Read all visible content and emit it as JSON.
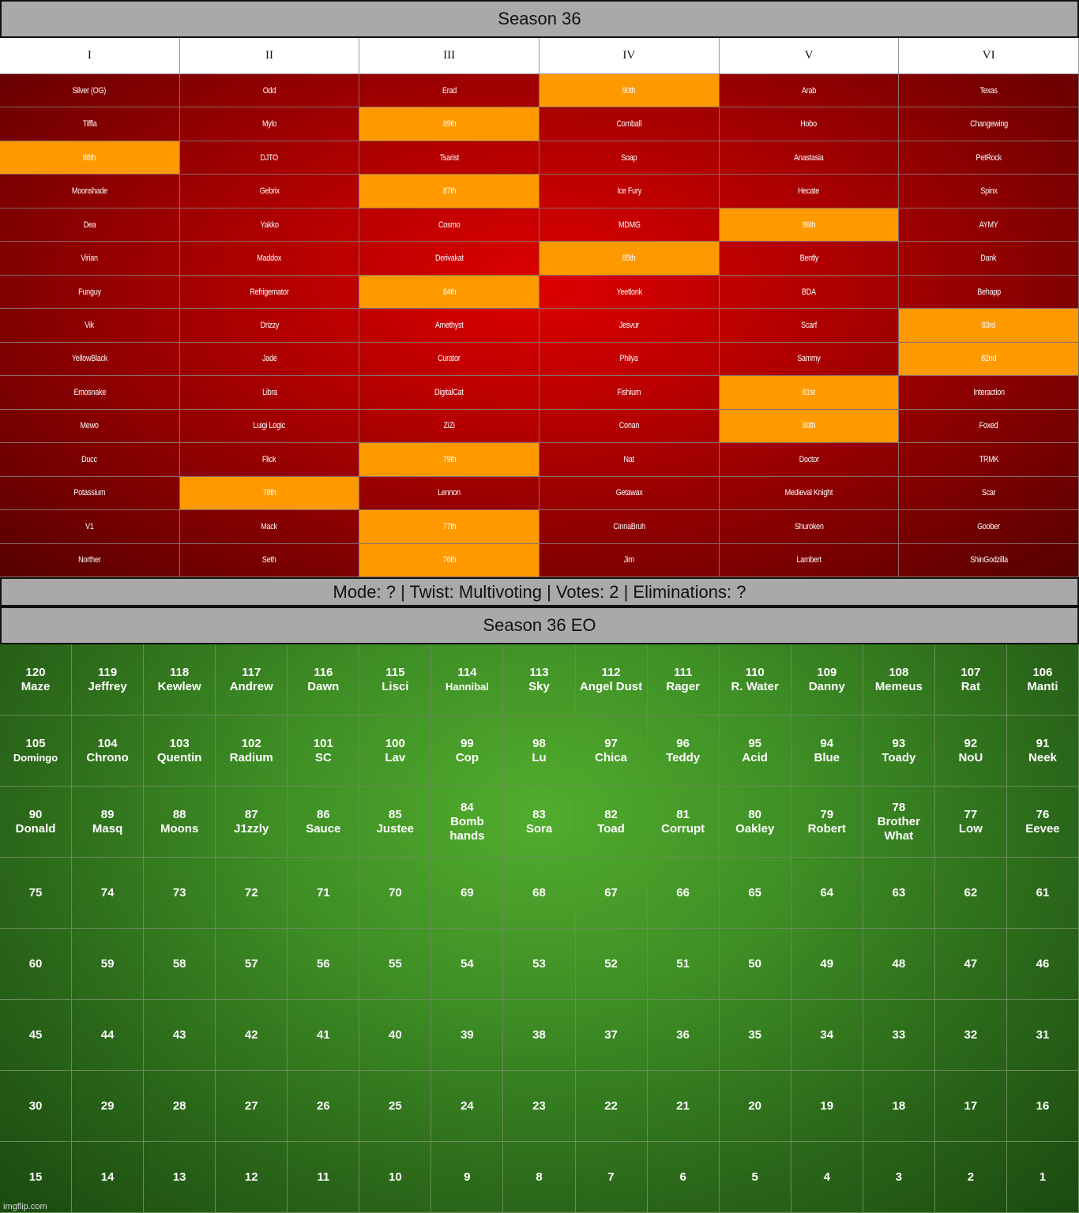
{
  "title": "Season 36",
  "columns": [
    "I",
    "II",
    "III",
    "IV",
    "V",
    "VI"
  ],
  "red_rows": [
    [
      "Silver (OG)",
      "Odd",
      "Erad",
      "90th",
      "Arab",
      "Texas"
    ],
    [
      "Tiffla",
      "Mylo",
      "89th",
      "Cornball",
      "Hobo",
      "Changewing"
    ],
    [
      "88th",
      "DJTO",
      "Tsarist",
      "Soap",
      "Anastasia",
      "PetRock"
    ],
    [
      "Moonshade",
      "Gebrix",
      "87th",
      "Ice Fury",
      "Hecate",
      "Spinx"
    ],
    [
      "Dea",
      "Yakko",
      "Cosmo",
      "MDMG",
      "86th",
      "AYMY"
    ],
    [
      "Virian",
      "Maddox",
      "Derivakat",
      "85th",
      "Bently",
      "Dank"
    ],
    [
      "Funguy",
      "Refrigemator",
      "84th",
      "Yeetlonk",
      "BDA",
      "Behapp"
    ],
    [
      "Vik",
      "Drizzy",
      "Amethyst",
      "Jesvur",
      "Scarf",
      "83rd"
    ],
    [
      "YellowBlack",
      "Jade",
      "Curator",
      "Philya",
      "Sammy",
      "82nd"
    ],
    [
      "Emosnake",
      "Libra",
      "DigitalCat",
      "Fishium",
      "81st",
      "Interaction"
    ],
    [
      "Mewo",
      "Luigi Logic",
      "ZiZi",
      "Conan",
      "80th",
      "Foxed"
    ],
    [
      "Ducc",
      "Flick",
      "79th",
      "Nat",
      "Doctor",
      "TRMK"
    ],
    [
      "Potassium",
      "78th",
      "Lennon",
      "Getawax",
      "Medieval Knight",
      "Scar"
    ],
    [
      "V1",
      "Mack",
      "77th",
      "CinnaBruh",
      "Shuroken",
      "Goober"
    ],
    [
      "Norther",
      "Seth",
      "76th",
      "Jim",
      "Lambert",
      "ShinGodzilla"
    ]
  ],
  "mode_line": "Mode: ? | Twist: Multivoting | Votes: 2 | Eliminations: ?",
  "eo_title": "Season 36 EO",
  "eo_rows": [
    [
      [
        "120",
        "Maze"
      ],
      [
        "119",
        "Jeffrey"
      ],
      [
        "118",
        "Kewlew"
      ],
      [
        "117",
        "Andrew"
      ],
      [
        "116",
        "Dawn"
      ],
      [
        "115",
        "Lisci"
      ],
      [
        "114",
        "Hannibal"
      ],
      [
        "113",
        "Sky"
      ],
      [
        "112",
        "Angel Dust"
      ],
      [
        "111",
        "Rager"
      ],
      [
        "110",
        "R. Water"
      ],
      [
        "109",
        "Danny"
      ],
      [
        "108",
        "Memeus"
      ],
      [
        "107",
        "Rat"
      ],
      [
        "106",
        "Manti"
      ]
    ],
    [
      [
        "105",
        "Domingo"
      ],
      [
        "104",
        "Chrono"
      ],
      [
        "103",
        "Quentin"
      ],
      [
        "102",
        "Radium"
      ],
      [
        "101",
        "SC"
      ],
      [
        "100",
        "Lav"
      ],
      [
        "99",
        "Cop"
      ],
      [
        "98",
        "Lu"
      ],
      [
        "97",
        "Chica"
      ],
      [
        "96",
        "Teddy"
      ],
      [
        "95",
        "Acid"
      ],
      [
        "94",
        "Blue"
      ],
      [
        "93",
        "Toady"
      ],
      [
        "92",
        "NoU"
      ],
      [
        "91",
        "Neek"
      ]
    ],
    [
      [
        "90",
        "Donald"
      ],
      [
        "89",
        "Masq"
      ],
      [
        "88",
        "Moons"
      ],
      [
        "87",
        "J1zzly"
      ],
      [
        "86",
        "Sauce"
      ],
      [
        "85",
        "Justee"
      ],
      [
        "84",
        "Bomb hands"
      ],
      [
        "83",
        "Sora"
      ],
      [
        "82",
        "Toad"
      ],
      [
        "81",
        "Corrupt"
      ],
      [
        "80",
        "Oakley"
      ],
      [
        "79",
        "Robert"
      ],
      [
        "78",
        "Brother What"
      ],
      [
        "77",
        "Low"
      ],
      [
        "76",
        "Eevee"
      ]
    ],
    [
      [
        "75"
      ],
      [
        "74"
      ],
      [
        "73"
      ],
      [
        "72"
      ],
      [
        "71"
      ],
      [
        "70"
      ],
      [
        "69"
      ],
      [
        "68"
      ],
      [
        "67"
      ],
      [
        "66"
      ],
      [
        "65"
      ],
      [
        "64"
      ],
      [
        "63"
      ],
      [
        "62"
      ],
      [
        "61"
      ]
    ],
    [
      [
        "60"
      ],
      [
        "59"
      ],
      [
        "58"
      ],
      [
        "57"
      ],
      [
        "56"
      ],
      [
        "55"
      ],
      [
        "54"
      ],
      [
        "53"
      ],
      [
        "52"
      ],
      [
        "51"
      ],
      [
        "50"
      ],
      [
        "49"
      ],
      [
        "48"
      ],
      [
        "47"
      ],
      [
        "46"
      ]
    ],
    [
      [
        "45"
      ],
      [
        "44"
      ],
      [
        "43"
      ],
      [
        "42"
      ],
      [
        "41"
      ],
      [
        "40"
      ],
      [
        "39"
      ],
      [
        "38"
      ],
      [
        "37"
      ],
      [
        "36"
      ],
      [
        "35"
      ],
      [
        "34"
      ],
      [
        "33"
      ],
      [
        "32"
      ],
      [
        "31"
      ]
    ],
    [
      [
        "30"
      ],
      [
        "29"
      ],
      [
        "28"
      ],
      [
        "27"
      ],
      [
        "26"
      ],
      [
        "25"
      ],
      [
        "24"
      ],
      [
        "23"
      ],
      [
        "22"
      ],
      [
        "21"
      ],
      [
        "20"
      ],
      [
        "19"
      ],
      [
        "18"
      ],
      [
        "17"
      ],
      [
        "16"
      ]
    ],
    [
      [
        "15"
      ],
      [
        "14"
      ],
      [
        "13"
      ],
      [
        "12"
      ],
      [
        "11"
      ],
      [
        "10"
      ],
      [
        "9"
      ],
      [
        "8"
      ],
      [
        "7"
      ],
      [
        "6"
      ],
      [
        "5"
      ],
      [
        "4"
      ],
      [
        "3"
      ],
      [
        "2"
      ],
      [
        "1"
      ]
    ]
  ],
  "small_names": [
    "Hannibal",
    "Domingo"
  ],
  "colors": {
    "placed_cell": "#ff9900",
    "alive_cell": "#b30000",
    "eo_background": "#3e8e25",
    "banner": "#a9a9a9"
  },
  "watermark": "imgflip.com"
}
